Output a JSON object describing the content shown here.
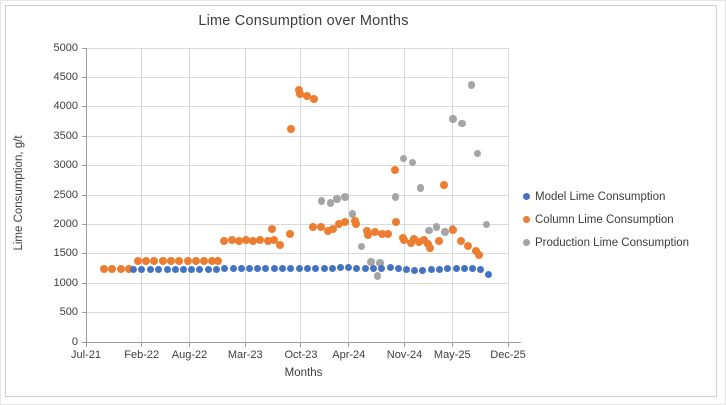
{
  "chart_data": {
    "type": "scatter",
    "title": "Lime Consumption over Months",
    "xlabel": "Months",
    "ylabel": "Lime Consumption, g/t",
    "grid": true,
    "legend_position": "right",
    "x_unit": "months since Jul-2021",
    "xlim": [
      0,
      53
    ],
    "ylim": [
      0,
      5000
    ],
    "y_ticks": [
      0,
      500,
      1000,
      1500,
      2000,
      2500,
      3000,
      3500,
      4000,
      4500,
      5000
    ],
    "x_ticks": [
      {
        "label": "Jul-21",
        "m": 0
      },
      {
        "label": "Feb-22",
        "m": 7
      },
      {
        "label": "Aug-22",
        "m": 13
      },
      {
        "label": "Mar-23",
        "m": 20
      },
      {
        "label": "Oct-23",
        "m": 27
      },
      {
        "label": "Apr-24",
        "m": 33
      },
      {
        "label": "Nov-24",
        "m": 40
      },
      {
        "label": "May-25",
        "m": 46
      },
      {
        "label": "Dec-25",
        "m": 53
      }
    ],
    "series": [
      {
        "name": "Model Lime Consumption",
        "color": "#4472C4",
        "marker_size": 7,
        "points": [
          [
            6.0,
            1235
          ],
          [
            7.0,
            1230
          ],
          [
            8.1,
            1235
          ],
          [
            9.1,
            1230
          ],
          [
            10.2,
            1235
          ],
          [
            11.2,
            1230
          ],
          [
            12.2,
            1235
          ],
          [
            13.3,
            1230
          ],
          [
            14.3,
            1235
          ],
          [
            15.4,
            1230
          ],
          [
            16.4,
            1235
          ],
          [
            17.4,
            1245
          ],
          [
            18.5,
            1250
          ],
          [
            19.5,
            1245
          ],
          [
            20.5,
            1250
          ],
          [
            21.6,
            1245
          ],
          [
            22.6,
            1250
          ],
          [
            23.7,
            1245
          ],
          [
            24.7,
            1250
          ],
          [
            25.7,
            1245
          ],
          [
            26.8,
            1245
          ],
          [
            27.8,
            1250
          ],
          [
            28.8,
            1245
          ],
          [
            29.9,
            1250
          ],
          [
            30.9,
            1245
          ],
          [
            32.0,
            1260
          ],
          [
            33.0,
            1265
          ],
          [
            34.0,
            1255
          ],
          [
            35.1,
            1250
          ],
          [
            36.1,
            1255
          ],
          [
            37.1,
            1250
          ],
          [
            38.2,
            1260
          ],
          [
            39.2,
            1250
          ],
          [
            40.3,
            1230
          ],
          [
            41.3,
            1220
          ],
          [
            42.3,
            1215
          ],
          [
            43.4,
            1225
          ],
          [
            44.4,
            1240
          ],
          [
            45.4,
            1250
          ],
          [
            46.5,
            1245
          ],
          [
            47.5,
            1250
          ],
          [
            48.5,
            1245
          ],
          [
            49.6,
            1240
          ],
          [
            50.6,
            1150
          ]
        ]
      },
      {
        "name": "Column Lime Consumption",
        "color": "#ED7D31",
        "marker_size": 8,
        "points": [
          [
            2.3,
            1235
          ],
          [
            3.3,
            1235
          ],
          [
            4.4,
            1235
          ],
          [
            5.4,
            1235
          ],
          [
            6.5,
            1385
          ],
          [
            7.5,
            1375
          ],
          [
            8.5,
            1385
          ],
          [
            9.7,
            1375
          ],
          [
            10.7,
            1385
          ],
          [
            11.7,
            1375
          ],
          [
            12.8,
            1385
          ],
          [
            13.8,
            1375
          ],
          [
            14.8,
            1385
          ],
          [
            15.8,
            1375
          ],
          [
            16.6,
            1385
          ],
          [
            17.3,
            1720
          ],
          [
            18.3,
            1730
          ],
          [
            19.2,
            1720
          ],
          [
            20.1,
            1730
          ],
          [
            21.0,
            1720
          ],
          [
            21.9,
            1730
          ],
          [
            22.9,
            1720
          ],
          [
            23.4,
            1920
          ],
          [
            23.6,
            1730
          ],
          [
            24.4,
            1650
          ],
          [
            25.6,
            1840
          ],
          [
            25.8,
            3630
          ],
          [
            26.8,
            4280
          ],
          [
            26.9,
            4220
          ],
          [
            27.8,
            4180
          ],
          [
            28.5,
            1950
          ],
          [
            28.6,
            4130
          ],
          [
            29.5,
            1955
          ],
          [
            30.4,
            1890
          ],
          [
            31.0,
            1920
          ],
          [
            31.8,
            2010
          ],
          [
            32.5,
            2045
          ],
          [
            33.8,
            2060
          ],
          [
            33.9,
            2000
          ],
          [
            35.3,
            1890
          ],
          [
            35.4,
            1815
          ],
          [
            36.3,
            1870
          ],
          [
            37.2,
            1840
          ],
          [
            37.9,
            1830
          ],
          [
            38.8,
            2920
          ],
          [
            38.9,
            2040
          ],
          [
            39.8,
            1770
          ],
          [
            39.9,
            1735
          ],
          [
            40.8,
            1685
          ],
          [
            41.2,
            1750
          ],
          [
            41.8,
            1700
          ],
          [
            42.5,
            1735
          ],
          [
            43.0,
            1665
          ],
          [
            43.2,
            1600
          ],
          [
            44.3,
            1720
          ],
          [
            44.9,
            2670
          ],
          [
            46.1,
            1905
          ],
          [
            47.1,
            1720
          ],
          [
            48.0,
            1630
          ],
          [
            49.0,
            1550
          ],
          [
            49.3,
            1480
          ]
        ]
      },
      {
        "name": "Production Lime Consumption",
        "color": "#A5A5A5",
        "marker_size": 7.5,
        "points": [
          [
            29.6,
            2400
          ],
          [
            30.7,
            2365
          ],
          [
            31.5,
            2430
          ],
          [
            32.5,
            2465
          ],
          [
            33.5,
            2180
          ],
          [
            34.6,
            1620
          ],
          [
            35.8,
            1360
          ],
          [
            36.6,
            1120
          ],
          [
            36.9,
            1340
          ],
          [
            38.9,
            2470
          ],
          [
            39.9,
            3120
          ],
          [
            41.0,
            3050
          ],
          [
            42.0,
            2620
          ],
          [
            43.1,
            1900
          ],
          [
            44.0,
            1955
          ],
          [
            45.1,
            1870
          ],
          [
            46.0,
            1920
          ],
          [
            46.1,
            3790
          ],
          [
            47.2,
            3720
          ],
          [
            48.4,
            4370
          ],
          [
            49.2,
            3210
          ],
          [
            50.3,
            2000
          ]
        ]
      }
    ]
  }
}
